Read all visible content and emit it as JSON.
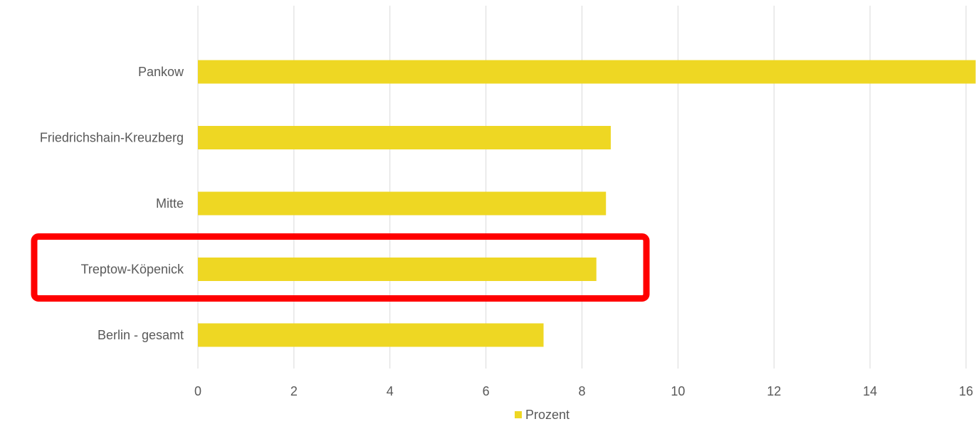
{
  "chart_data": {
    "type": "bar",
    "orientation": "horizontal",
    "categories": [
      "Pankow",
      "Friedrichshain-Kreuzberg",
      "Mitte",
      "Treptow-Köpenick",
      "Berlin - gesamt"
    ],
    "series": [
      {
        "name": "Prozent",
        "values": [
          16.2,
          8.6,
          8.5,
          8.3,
          7.2
        ],
        "color": "#eed723"
      }
    ],
    "xlim": [
      0,
      16
    ],
    "xticks": [
      "0",
      "2",
      "4",
      "6",
      "8",
      "10",
      "12",
      "14",
      "16"
    ],
    "grid": true,
    "legend_position": "bottom",
    "highlight": {
      "category": "Treptow-Köpenick",
      "color": "#ff0000"
    }
  }
}
